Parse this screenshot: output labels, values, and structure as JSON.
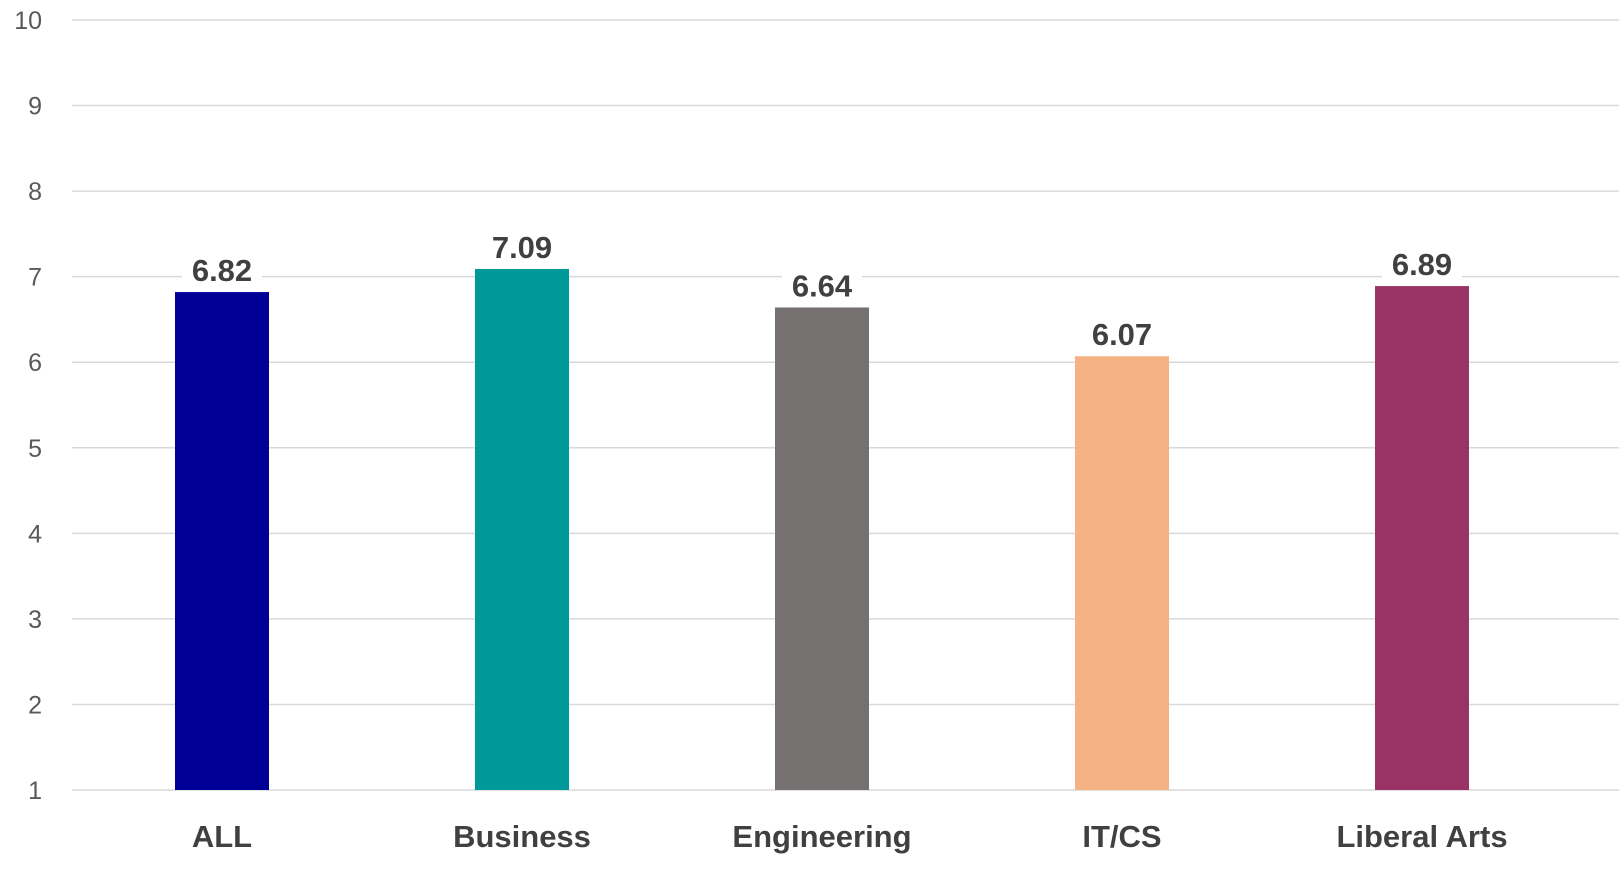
{
  "chart_data": {
    "type": "bar",
    "categories": [
      "ALL",
      "Business",
      "Engineering",
      "IT/CS",
      "Liberal Arts"
    ],
    "values": [
      6.82,
      7.09,
      6.64,
      6.07,
      6.89
    ],
    "data_labels": [
      "6.82",
      "7.09",
      "6.64",
      "6.07",
      "6.89"
    ],
    "colors": [
      "#000096",
      "#009999",
      "#767171",
      "#F4B183",
      "#993366"
    ],
    "ylim": [
      1,
      10
    ],
    "yticks": [
      "1",
      "2",
      "3",
      "4",
      "5",
      "6",
      "7",
      "8",
      "9",
      "10"
    ],
    "grid": true,
    "legend": "none",
    "title": "",
    "xlabel": "",
    "ylabel": ""
  }
}
